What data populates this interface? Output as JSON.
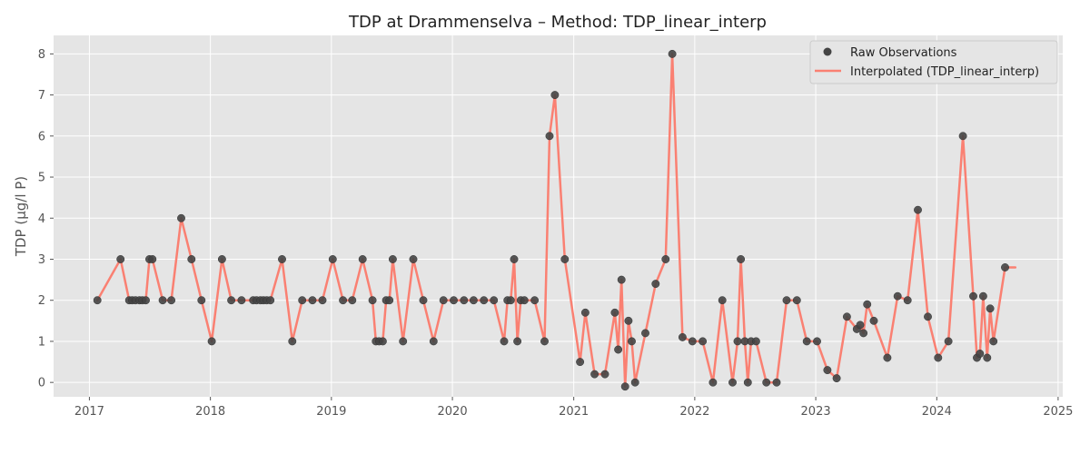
{
  "chart_data": {
    "type": "line",
    "title": "TDP at Drammenselva – Method: TDP_linear_interp",
    "xlabel": "",
    "ylabel": "TDP (µg/l P)",
    "xlim": [
      "2016-09-15",
      "2025-01-15"
    ],
    "ylim": [
      -0.35,
      8.45
    ],
    "x_ticks": [
      "2017",
      "2018",
      "2019",
      "2020",
      "2021",
      "2022",
      "2023",
      "2024",
      "2025"
    ],
    "y_ticks": [
      "0",
      "1",
      "2",
      "3",
      "4",
      "5",
      "6",
      "7",
      "8"
    ],
    "grid": true,
    "legend_position": "top-right",
    "colors": {
      "background": "#e5e5e5",
      "grid": "#ffffff",
      "line": "#fa8072",
      "marker": "#444444"
    },
    "series": [
      {
        "name": "Raw Observations",
        "type": "scatter",
        "points": [
          [
            "2017-01-25",
            2
          ],
          [
            "2017-04-05",
            3
          ],
          [
            "2017-05-01",
            2
          ],
          [
            "2017-05-10",
            2
          ],
          [
            "2017-05-20",
            2
          ],
          [
            "2017-06-01",
            2
          ],
          [
            "2017-06-10",
            2
          ],
          [
            "2017-06-20",
            2
          ],
          [
            "2017-07-01",
            3
          ],
          [
            "2017-07-10",
            3
          ],
          [
            "2017-08-10",
            2
          ],
          [
            "2017-09-05",
            2
          ],
          [
            "2017-10-05",
            4
          ],
          [
            "2017-11-05",
            3
          ],
          [
            "2017-12-05",
            2
          ],
          [
            "2018-01-05",
            1
          ],
          [
            "2018-02-05",
            3
          ],
          [
            "2018-03-05",
            2
          ],
          [
            "2018-04-05",
            2
          ],
          [
            "2018-05-10",
            2
          ],
          [
            "2018-05-20",
            2
          ],
          [
            "2018-06-01",
            2
          ],
          [
            "2018-06-10",
            2
          ],
          [
            "2018-06-20",
            2
          ],
          [
            "2018-07-01",
            2
          ],
          [
            "2018-08-05",
            3
          ],
          [
            "2018-09-05",
            1
          ],
          [
            "2018-10-05",
            2
          ],
          [
            "2018-11-05",
            2
          ],
          [
            "2018-12-05",
            2
          ],
          [
            "2019-01-05",
            3
          ],
          [
            "2019-02-05",
            2
          ],
          [
            "2019-03-05",
            2
          ],
          [
            "2019-04-05",
            3
          ],
          [
            "2019-05-05",
            2
          ],
          [
            "2019-05-15",
            1
          ],
          [
            "2019-05-25",
            1
          ],
          [
            "2019-06-05",
            1
          ],
          [
            "2019-06-15",
            2
          ],
          [
            "2019-06-25",
            2
          ],
          [
            "2019-07-05",
            3
          ],
          [
            "2019-08-05",
            1
          ],
          [
            "2019-09-05",
            3
          ],
          [
            "2019-10-05",
            2
          ],
          [
            "2019-11-05",
            1
          ],
          [
            "2019-12-05",
            2
          ],
          [
            "2020-01-05",
            2
          ],
          [
            "2020-02-05",
            2
          ],
          [
            "2020-03-05",
            2
          ],
          [
            "2020-04-05",
            2
          ],
          [
            "2020-05-05",
            2
          ],
          [
            "2020-06-05",
            1
          ],
          [
            "2020-06-15",
            2
          ],
          [
            "2020-06-25",
            2
          ],
          [
            "2020-07-05",
            3
          ],
          [
            "2020-07-15",
            1
          ],
          [
            "2020-07-25",
            2
          ],
          [
            "2020-08-05",
            2
          ],
          [
            "2020-09-05",
            2
          ],
          [
            "2020-10-05",
            1
          ],
          [
            "2020-10-20",
            6
          ],
          [
            "2020-11-05",
            7
          ],
          [
            "2020-12-05",
            3
          ],
          [
            "2021-01-20",
            0.5
          ],
          [
            "2021-02-05",
            1.7
          ],
          [
            "2021-03-05",
            0.2
          ],
          [
            "2021-04-05",
            0.2
          ],
          [
            "2021-05-05",
            1.7
          ],
          [
            "2021-05-15",
            0.8
          ],
          [
            "2021-05-25",
            2.5
          ],
          [
            "2021-06-05",
            -0.1
          ],
          [
            "2021-06-15",
            1.5
          ],
          [
            "2021-06-25",
            1.0
          ],
          [
            "2021-07-05",
            0.0
          ],
          [
            "2021-08-05",
            1.2
          ],
          [
            "2021-09-05",
            2.4
          ],
          [
            "2021-10-05",
            3
          ],
          [
            "2021-10-25",
            8
          ],
          [
            "2021-11-25",
            1.1
          ],
          [
            "2021-12-25",
            1.0
          ],
          [
            "2022-01-25",
            1.0
          ],
          [
            "2022-02-25",
            0.0
          ],
          [
            "2022-03-25",
            2.0
          ],
          [
            "2022-04-25",
            0.0
          ],
          [
            "2022-05-10",
            1.0
          ],
          [
            "2022-05-20",
            3.0
          ],
          [
            "2022-06-01",
            1.0
          ],
          [
            "2022-06-10",
            0.0
          ],
          [
            "2022-06-20",
            1.0
          ],
          [
            "2022-07-05",
            1.0
          ],
          [
            "2022-08-05",
            0.0
          ],
          [
            "2022-09-05",
            0.0
          ],
          [
            "2022-10-05",
            2.0
          ],
          [
            "2022-11-05",
            2.0
          ],
          [
            "2022-12-05",
            1.0
          ],
          [
            "2023-01-05",
            1.0
          ],
          [
            "2023-02-05",
            0.3
          ],
          [
            "2023-03-05",
            0.1
          ],
          [
            "2023-04-05",
            1.6
          ],
          [
            "2023-05-05",
            1.3
          ],
          [
            "2023-05-15",
            1.4
          ],
          [
            "2023-05-25",
            1.2
          ],
          [
            "2023-06-05",
            1.9
          ],
          [
            "2023-06-25",
            1.5
          ],
          [
            "2023-08-05",
            0.6
          ],
          [
            "2023-09-05",
            2.1
          ],
          [
            "2023-10-05",
            2.0
          ],
          [
            "2023-11-05",
            4.2
          ],
          [
            "2023-12-05",
            1.6
          ],
          [
            "2024-01-05",
            0.6
          ],
          [
            "2024-02-05",
            1.0
          ],
          [
            "2024-03-20",
            6.0
          ],
          [
            "2024-04-20",
            2.1
          ],
          [
            "2024-05-01",
            0.6
          ],
          [
            "2024-05-10",
            0.7
          ],
          [
            "2024-05-20",
            2.1
          ],
          [
            "2024-06-01",
            0.6
          ],
          [
            "2024-06-10",
            1.8
          ],
          [
            "2024-06-20",
            1.0
          ],
          [
            "2024-07-25",
            2.8
          ]
        ]
      },
      {
        "name": "Interpolated (TDP_linear_interp)",
        "type": "line",
        "extra_points": [
          [
            "2024-08-25",
            2.8
          ]
        ]
      }
    ]
  }
}
